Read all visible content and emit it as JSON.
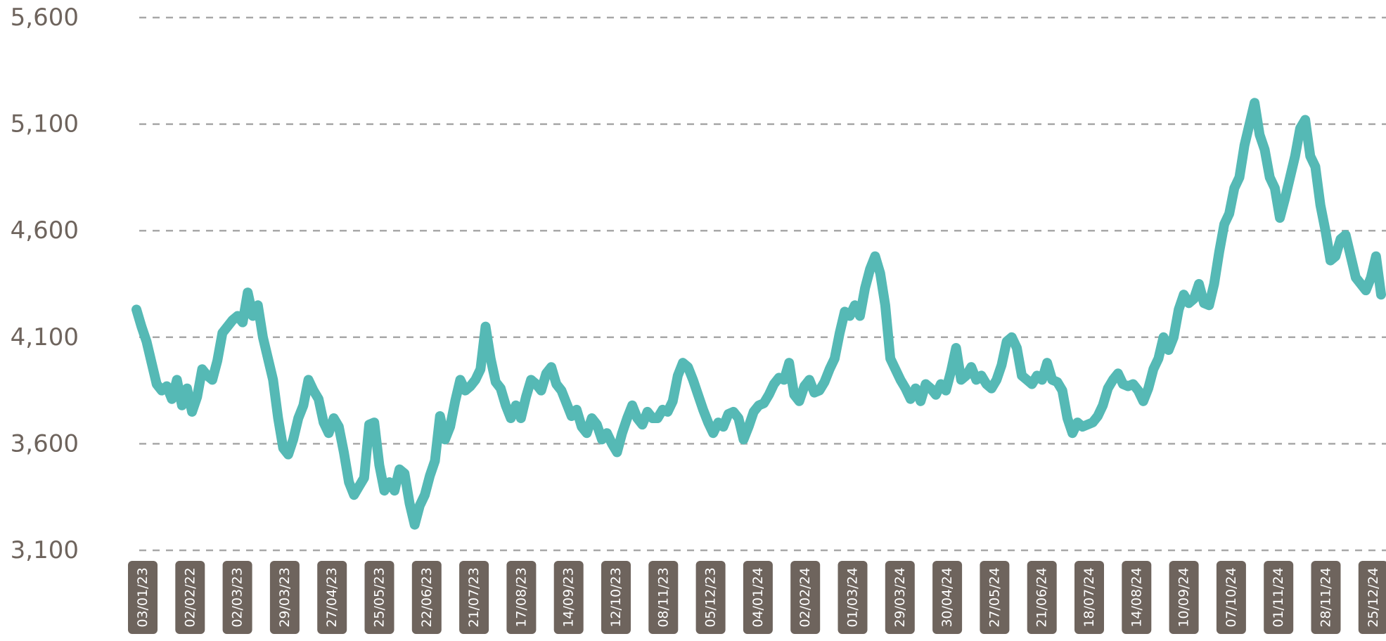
{
  "chart_data": {
    "type": "line",
    "title": "",
    "xlabel": "",
    "ylabel": "",
    "ylim": [
      3100,
      5600
    ],
    "yticks": [
      3100,
      3600,
      4100,
      4600,
      5100,
      5600
    ],
    "ytick_labels": [
      "3,100",
      "3,600",
      "4,100",
      "4,600",
      "5,100",
      "5,600"
    ],
    "grid": true,
    "legend": "none",
    "colors": {
      "line": "#55b9b5",
      "tick_label": "#6e645d",
      "pill": "#6e645d",
      "grid": "#a8a8a8"
    },
    "x_tick_labels": [
      "03/01/23",
      "02/02/22",
      "02/03/23",
      "29/03/23",
      "27/04/23",
      "25/05/23",
      "22/06/23",
      "21/07/23",
      "17/08/23",
      "14/09/23",
      "12/10/23",
      "08/11/23",
      "05/12/23",
      "04/01/24",
      "02/02/24",
      "01/03/24",
      "29/03/24",
      "30/04/24",
      "27/05/24",
      "21/06/24",
      "18/07/24",
      "14/08/24",
      "10/09/24",
      "07/10/24",
      "01/11/24",
      "28/11/24",
      "25/12/24"
    ],
    "series": [
      {
        "values": [
          4230,
          4150,
          4080,
          3980,
          3880,
          3850,
          3870,
          3810,
          3900,
          3780,
          3860,
          3750,
          3820,
          3950,
          3920,
          3900,
          3990,
          4120,
          4150,
          4180,
          4200,
          4170,
          4310,
          4200,
          4250,
          4100,
          4000,
          3900,
          3720,
          3580,
          3550,
          3620,
          3720,
          3780,
          3900,
          3850,
          3810,
          3700,
          3650,
          3720,
          3680,
          3560,
          3420,
          3360,
          3400,
          3440,
          3690,
          3700,
          3500,
          3380,
          3420,
          3380,
          3480,
          3460,
          3320,
          3220,
          3310,
          3360,
          3450,
          3520,
          3730,
          3620,
          3680,
          3800,
          3900,
          3850,
          3870,
          3900,
          3950,
          4150,
          4000,
          3890,
          3860,
          3780,
          3720,
          3780,
          3720,
          3820,
          3900,
          3880,
          3850,
          3930,
          3960,
          3880,
          3850,
          3790,
          3730,
          3760,
          3680,
          3650,
          3720,
          3690,
          3620,
          3650,
          3600,
          3560,
          3650,
          3720,
          3780,
          3720,
          3690,
          3750,
          3720,
          3720,
          3760,
          3750,
          3800,
          3920,
          3980,
          3960,
          3900,
          3830,
          3760,
          3700,
          3650,
          3700,
          3680,
          3740,
          3750,
          3720,
          3620,
          3680,
          3750,
          3780,
          3790,
          3830,
          3880,
          3910,
          3900,
          3980,
          3830,
          3800,
          3870,
          3900,
          3840,
          3850,
          3890,
          3950,
          4000,
          4120,
          4220,
          4200,
          4250,
          4200,
          4330,
          4420,
          4480,
          4400,
          4250,
          4000,
          3950,
          3900,
          3860,
          3810,
          3860,
          3800,
          3880,
          3860,
          3830,
          3880,
          3850,
          3940,
          4050,
          3900,
          3920,
          3960,
          3900,
          3920,
          3880,
          3860,
          3900,
          3970,
          4080,
          4100,
          4050,
          3920,
          3900,
          3880,
          3920,
          3900,
          3980,
          3900,
          3890,
          3850,
          3720,
          3650,
          3700,
          3680,
          3690,
          3700,
          3730,
          3780,
          3860,
          3900,
          3930,
          3880,
          3870,
          3880,
          3850,
          3800,
          3860,
          3950,
          4000,
          4100,
          4040,
          4100,
          4230,
          4300,
          4260,
          4280,
          4350,
          4260,
          4250,
          4350,
          4500,
          4630,
          4680,
          4800,
          4850,
          5000,
          5100,
          5200,
          5050,
          4980,
          4850,
          4800,
          4660,
          4750,
          4850,
          4950,
          5080,
          5120,
          4950,
          4900,
          4720,
          4600,
          4460,
          4480,
          4560,
          4580,
          4480,
          4380,
          4350,
          4320,
          4380,
          4480,
          4300
        ]
      }
    ]
  }
}
